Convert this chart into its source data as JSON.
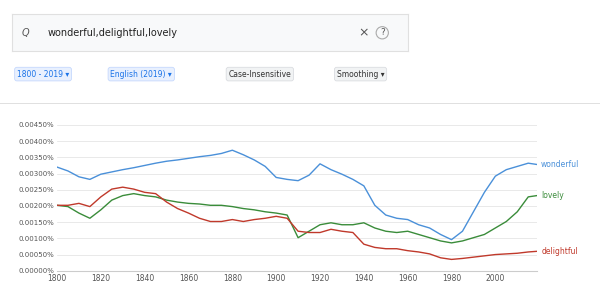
{
  "title": "wonderful,delightful,lovely",
  "years": [
    1800,
    1805,
    1810,
    1815,
    1820,
    1825,
    1830,
    1835,
    1840,
    1845,
    1850,
    1855,
    1860,
    1865,
    1870,
    1875,
    1880,
    1885,
    1890,
    1895,
    1900,
    1905,
    1910,
    1915,
    1920,
    1925,
    1930,
    1935,
    1940,
    1945,
    1950,
    1955,
    1960,
    1965,
    1970,
    1975,
    1980,
    1985,
    1990,
    1995,
    2000,
    2005,
    2010,
    2015,
    2019
  ],
  "wonderful": [
    0.0032,
    0.00308,
    0.0029,
    0.00282,
    0.00298,
    0.00305,
    0.00312,
    0.00318,
    0.00325,
    0.00332,
    0.00338,
    0.00342,
    0.00347,
    0.00352,
    0.00356,
    0.00362,
    0.00372,
    0.00358,
    0.00342,
    0.00322,
    0.00288,
    0.00282,
    0.00278,
    0.00295,
    0.0033,
    0.00312,
    0.00298,
    0.00282,
    0.00262,
    0.00202,
    0.00172,
    0.00162,
    0.00158,
    0.00142,
    0.00132,
    0.00112,
    0.00096,
    0.00122,
    0.00182,
    0.00242,
    0.00292,
    0.00312,
    0.00322,
    0.00332,
    0.00328
  ],
  "lovely": [
    0.00202,
    0.00198,
    0.00178,
    0.00162,
    0.00188,
    0.00218,
    0.00232,
    0.00238,
    0.00232,
    0.00228,
    0.00218,
    0.00212,
    0.00208,
    0.00206,
    0.00202,
    0.00202,
    0.00198,
    0.00192,
    0.00188,
    0.00182,
    0.00178,
    0.00172,
    0.00102,
    0.00122,
    0.00142,
    0.00148,
    0.00142,
    0.00142,
    0.00148,
    0.00132,
    0.00122,
    0.00118,
    0.00122,
    0.00112,
    0.00102,
    0.00092,
    0.00086,
    0.00092,
    0.00102,
    0.00112,
    0.00132,
    0.00152,
    0.00182,
    0.00228,
    0.00232
  ],
  "delightful": [
    0.00202,
    0.00202,
    0.00208,
    0.00198,
    0.00228,
    0.00252,
    0.00258,
    0.00252,
    0.00242,
    0.00238,
    0.00212,
    0.00192,
    0.00178,
    0.00162,
    0.00152,
    0.00152,
    0.00158,
    0.00152,
    0.00158,
    0.00162,
    0.00168,
    0.00162,
    0.00122,
    0.00118,
    0.00118,
    0.00128,
    0.00122,
    0.00118,
    0.00082,
    0.00072,
    0.00068,
    0.00068,
    0.00062,
    0.00058,
    0.00052,
    0.0004,
    0.00035,
    0.00038,
    0.00042,
    0.00046,
    0.0005,
    0.00052,
    0.00054,
    0.00058,
    0.0006
  ],
  "wonderful_color": "#4a90d9",
  "lovely_color": "#3a8c3a",
  "delightful_color": "#c0392b",
  "bg_color": "#ffffff",
  "ylim": [
    0.0,
    0.00475
  ],
  "yticks": [
    0.0,
    0.0005,
    0.001,
    0.0015,
    0.002,
    0.0025,
    0.003,
    0.0035,
    0.004,
    0.0045
  ],
  "ytick_labels": [
    "0.00000%",
    "0.00050%",
    "0.00100%",
    "0.00150%",
    "0.00200%",
    "0.00250%",
    "0.00300%",
    "0.00350%",
    "0.00400%",
    "0.00450%"
  ],
  "xticks": [
    1800,
    1820,
    1840,
    1860,
    1880,
    1900,
    1920,
    1940,
    1960,
    1980,
    2000
  ],
  "chip_blue_bg": "#e8f0fe",
  "chip_blue_text": "#1a73e8",
  "chip_gray_bg": "#f1f3f4",
  "chip_gray_text": "#333333",
  "chip_gray_border": "#dadce0"
}
